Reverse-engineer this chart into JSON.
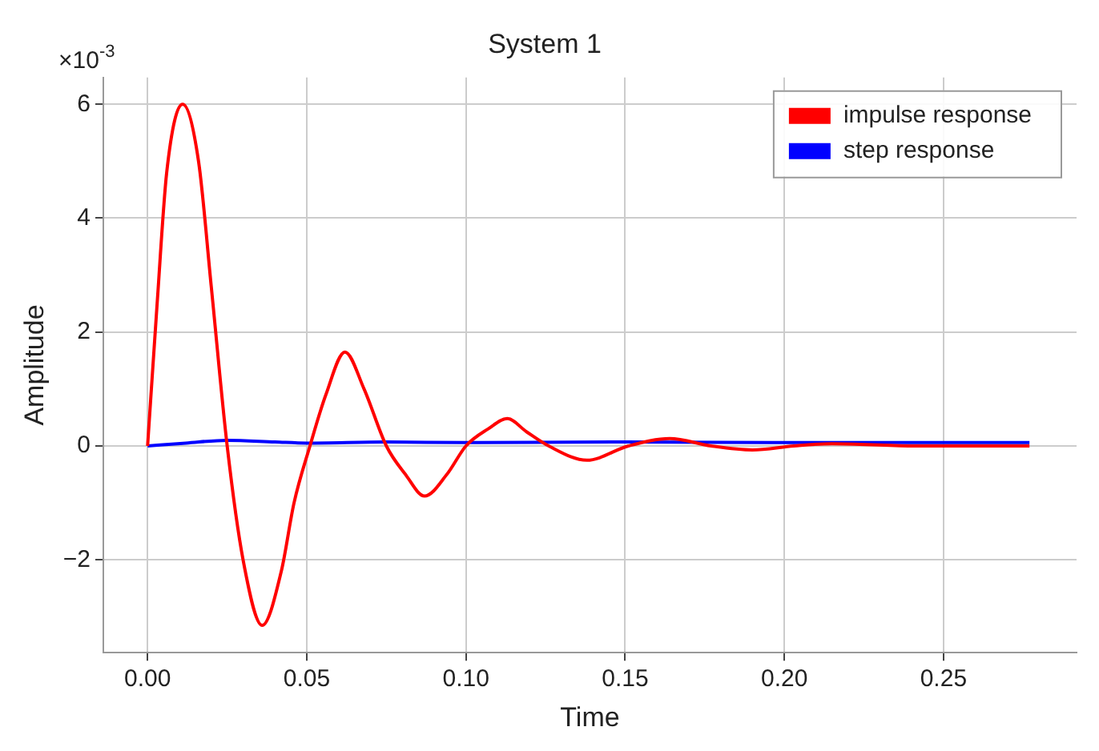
{
  "chart_data": {
    "type": "line",
    "title": "System 1",
    "xlabel": "Time",
    "ylabel": "Amplitude",
    "annotations": [
      "×10$^{-3}$"
    ],
    "xlim": [
      -0.0139,
      0.2918
    ],
    "xticks": [
      {
        "value": 0,
        "label": "0.00"
      },
      {
        "value": 0.05,
        "label": "0.05"
      },
      {
        "value": 0.1,
        "label": "0.10"
      },
      {
        "value": 0.15,
        "label": "0.15"
      },
      {
        "value": 0.2,
        "label": "0.20"
      },
      {
        "value": 0.25,
        "label": "0.25"
      }
    ],
    "ylim": [
      -3.63,
      6.47
    ],
    "yticks": [
      {
        "value": -2,
        "label": "−2"
      },
      0,
      2,
      4,
      6
    ],
    "grid": true,
    "legend": "top right",
    "marker": "none",
    "line_style": "solid",
    "series": [
      {
        "name": "impulse response",
        "color": "#ff0000",
        "x": [
          0,
          0.003,
          0.006,
          0.011,
          0.016,
          0.02,
          0.025,
          0.03,
          0.036,
          0.042,
          0.046,
          0.051,
          0.056,
          0.062,
          0.068,
          0.075,
          0.081,
          0.087,
          0.094,
          0.1,
          0.107,
          0.113,
          0.119,
          0.126,
          0.138,
          0.151,
          0.164,
          0.177,
          0.19,
          0.203,
          0.215,
          0.24,
          0.277
        ],
        "values": [
          0,
          2.5,
          4.8,
          6,
          5.0,
          2.8,
          0,
          -2.0,
          -3.15,
          -2.2,
          -1.0,
          0,
          0.9,
          1.65,
          1.0,
          0,
          -0.5,
          -0.88,
          -0.5,
          0,
          0.3,
          0.48,
          0.25,
          0,
          -0.25,
          0,
          0.13,
          0,
          -0.07,
          0,
          0.04,
          0,
          0
        ]
      },
      {
        "name": "step response",
        "color": "#0000ff",
        "x": [
          0,
          0.012,
          0.025,
          0.04,
          0.05,
          0.075,
          0.1,
          0.15,
          0.2,
          0.277
        ],
        "values": [
          0,
          0.05,
          0.1,
          0.07,
          0.05,
          0.07,
          0.06,
          0.07,
          0.06,
          0.06
        ]
      }
    ]
  }
}
